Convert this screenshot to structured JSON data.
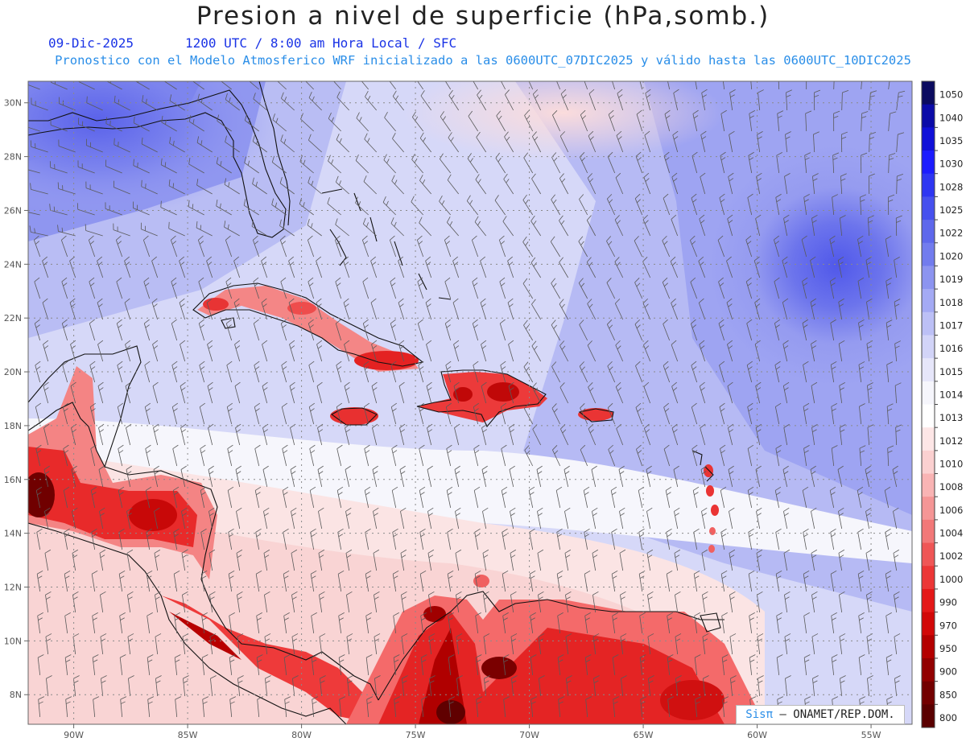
{
  "title": "Presion a nivel de superficie (hPa,somb.)",
  "date_label": "09-Dic-2025",
  "time_label": "1200 UTC / 8:00 am Hora Local / SFC",
  "description": "Pronostico con el Modelo Atmosferico WRF inicializado a las 0600UTC_07DIC2025 y válido hasta las  0600UTC_10DIC2025",
  "credit": {
    "brand": "Sisπ",
    "text": " – ONAMET/REP.DOM."
  },
  "map": {
    "lon_range": [
      -92,
      -53.2
    ],
    "lat_range": [
      6.9,
      30.8
    ],
    "lon_ticks": [
      {
        "value": -90,
        "label": "90W"
      },
      {
        "value": -85,
        "label": "85W"
      },
      {
        "value": -80,
        "label": "80W"
      },
      {
        "value": -75,
        "label": "75W"
      },
      {
        "value": -70,
        "label": "70W"
      },
      {
        "value": -65,
        "label": "65W"
      },
      {
        "value": -60,
        "label": "60W"
      },
      {
        "value": -55,
        "label": "55W"
      }
    ],
    "lat_ticks": [
      {
        "value": 30,
        "label": "30N"
      },
      {
        "value": 28,
        "label": "28N"
      },
      {
        "value": 26,
        "label": "26N"
      },
      {
        "value": 24,
        "label": "24N"
      },
      {
        "value": 22,
        "label": "22N"
      },
      {
        "value": 20,
        "label": "20N"
      },
      {
        "value": 18,
        "label": "18N"
      },
      {
        "value": 16,
        "label": "16N"
      },
      {
        "value": 14,
        "label": "14N"
      },
      {
        "value": 12,
        "label": "12N"
      },
      {
        "value": 10,
        "label": "10N"
      },
      {
        "value": 8,
        "label": "8N"
      }
    ],
    "grid": true
  },
  "colorbar": {
    "labels": [
      "1050",
      "1040",
      "1035",
      "1030",
      "1028",
      "1025",
      "1022",
      "1020",
      "1019",
      "1018",
      "1017",
      "1016",
      "1015",
      "1014",
      "1013",
      "1012",
      "1010",
      "1008",
      "1006",
      "1004",
      "1002",
      "1000",
      "990",
      "970",
      "950",
      "900",
      "850",
      "800"
    ],
    "colors": [
      "#0b0b60",
      "#0b0ba8",
      "#1010d8",
      "#1c1cff",
      "#2e36f2",
      "#4650ee",
      "#5e68ec",
      "#727cee",
      "#8c94f0",
      "#a4aaf4",
      "#bcc0f6",
      "#d2d4f8",
      "#e6e6fa",
      "#f6f6fc",
      "#ffffff",
      "#fde6e6",
      "#fbd0d0",
      "#f9b4b4",
      "#f59696",
      "#f27878",
      "#ef5656",
      "#ec3636",
      "#e41818",
      "#d20808",
      "#b40000",
      "#920000",
      "#730000",
      "#5a0000"
    ]
  },
  "chart_data": {
    "type": "heatmap",
    "title": "Presion a nivel de superficie (hPa,somb.)",
    "variable": "surface pressure",
    "units": "hPa",
    "x_range": [
      -92,
      -53.2
    ],
    "y_range": [
      6.9,
      30.8
    ],
    "color_levels": [
      800,
      850,
      900,
      950,
      970,
      990,
      1000,
      1002,
      1004,
      1006,
      1008,
      1010,
      1012,
      1013,
      1014,
      1015,
      1016,
      1017,
      1018,
      1019,
      1020,
      1022,
      1025,
      1028,
      1030,
      1035,
      1040,
      1050
    ],
    "features": [
      {
        "region": "high pressure center NE of Lesser Antilles",
        "lon": -55.5,
        "lat": 24.5,
        "approx_value": 1020
      },
      {
        "region": "eastern Gulf of Mexico / southeastern USA",
        "lon": -88,
        "lat": 28.5,
        "approx_value": 1019
      },
      {
        "region": "central Caribbean Sea",
        "lon": -75,
        "lat": 15,
        "approx_value": 1014
      },
      {
        "region": "Guatemala highlands",
        "lon": -91.5,
        "lat": 15,
        "approx_value": 800
      },
      {
        "region": "Venezuela / Colombia Andes",
        "lon": -72.5,
        "lat": 8.5,
        "approx_value": 850
      },
      {
        "region": "Hispaniola mountains",
        "lon": -71,
        "lat": 19,
        "approx_value": 970
      }
    ]
  }
}
